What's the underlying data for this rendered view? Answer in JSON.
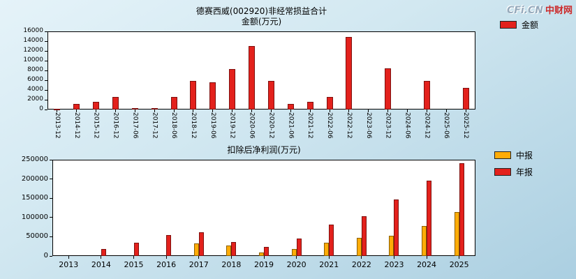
{
  "logo": {
    "cfi": "CFi.CN",
    "zhongcai": "中财网"
  },
  "chart_data": [
    {
      "type": "bar",
      "title": "德赛西威(002920)非经常损益合计",
      "subtitle": "金额(万元)",
      "categories": [
        "2013-12",
        "2014-12",
        "2015-12",
        "2016-12",
        "2017-06",
        "2017-12",
        "2018-06",
        "2018-12",
        "2019-06",
        "2019-12",
        "2020-06",
        "2020-12",
        "2021-06",
        "2021-12",
        "2022-06",
        "2022-12",
        "2023-06",
        "2023-12",
        "2024-06",
        "2024-12",
        "2025-06",
        "2025-12"
      ],
      "series": [
        {
          "id": "amount",
          "name": "金额",
          "color": "#e3211c",
          "edge": "#7e100e",
          "values": [
            150,
            1100,
            1600,
            2600,
            250,
            350,
            2600,
            5900,
            5600,
            8300,
            13000,
            5800,
            1100,
            1600,
            2600,
            14800,
            0,
            8400,
            0,
            5900,
            0,
            4400
          ]
        }
      ],
      "ylim": [
        0,
        16000
      ],
      "ytick_step": 2000,
      "unit": "万元",
      "grid": false,
      "legend_position": "top-right"
    },
    {
      "type": "bar",
      "title": "扣除后净利润(万元)",
      "categories": [
        "2013",
        "2014",
        "2015",
        "2016",
        "2017",
        "2018",
        "2019",
        "2020",
        "2021",
        "2022",
        "2023",
        "2024",
        "2025"
      ],
      "series": [
        {
          "id": "interim",
          "name": "中报",
          "color": "#ffac07",
          "edge": "#8a5f00",
          "values": [
            0,
            0,
            0,
            0,
            33000,
            27000,
            9000,
            18000,
            35000,
            48000,
            53000,
            78000,
            115000
          ]
        },
        {
          "id": "annual",
          "name": "年报",
          "color": "#e3211c",
          "edge": "#7e100e",
          "values": [
            0,
            18000,
            35000,
            55000,
            61000,
            36000,
            23000,
            46000,
            82000,
            103000,
            146000,
            195000,
            241000
          ]
        }
      ],
      "ylim": [
        0,
        250000
      ],
      "ytick_step": 50000,
      "unit": "万元",
      "grid": false,
      "legend_position": "top-right"
    }
  ]
}
